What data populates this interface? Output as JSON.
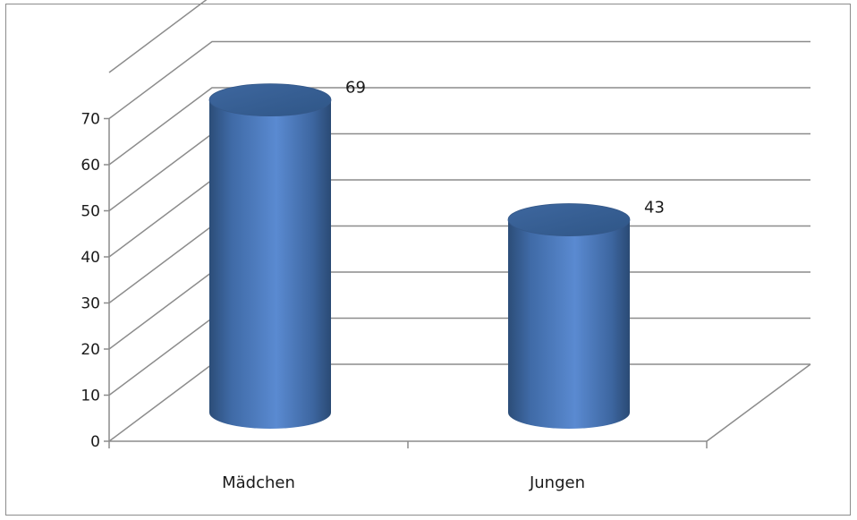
{
  "chart_data": {
    "type": "bar",
    "style": "3d-cylinder",
    "categories": [
      "Mädchen",
      "Jungen"
    ],
    "values": [
      69,
      43
    ],
    "data_labels": [
      "69",
      "43"
    ],
    "title": "",
    "xlabel": "",
    "ylabel": "",
    "ylim": [
      0,
      70
    ],
    "yticks": [
      "0",
      "10",
      "20",
      "30",
      "40",
      "50",
      "60",
      "70"
    ],
    "grid": true,
    "legend": "none",
    "bar_color": "#4f81bd"
  }
}
